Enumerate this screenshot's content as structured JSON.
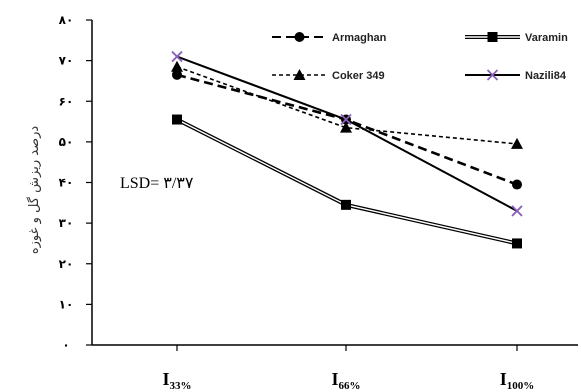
{
  "chart_data": {
    "type": "line",
    "categories": [
      {
        "main": "I",
        "sub": "33%"
      },
      {
        "main": "I",
        "sub": "66%"
      },
      {
        "main": "I",
        "sub": "100%"
      }
    ],
    "y_ticks": [
      "٠",
      "١٠",
      "٢٠",
      "٣٠",
      "۴٠",
      "۵٠",
      "۶٠",
      "٧٠",
      "٨٠"
    ],
    "ylim": [
      0,
      80
    ],
    "ylabel": "درصد ریزش گل و غوزه",
    "xlabel": "",
    "annotation": "LSD= ٣/٣٧",
    "series": [
      {
        "name": "Armaghan",
        "values": [
          66.5,
          55.5,
          39.5
        ],
        "color": "#000000",
        "dash": "9,5",
        "width": 2.6,
        "marker": "circle",
        "double": false
      },
      {
        "name": "Varamin",
        "values": [
          55.5,
          34.5,
          25.0
        ],
        "color": "#000000",
        "dash": "",
        "width": 1.2,
        "marker": "square",
        "double": true
      },
      {
        "name": "Coker 349",
        "values": [
          68.5,
          53.5,
          49.5
        ],
        "color": "#000000",
        "dash": "4,3",
        "width": 1.6,
        "marker": "triangle",
        "double": false
      },
      {
        "name": "Nazili84",
        "values": [
          71.0,
          55.5,
          33.0
        ],
        "color": "#000000",
        "dash": "",
        "width": 2.0,
        "marker": "x",
        "double": false
      }
    ]
  }
}
